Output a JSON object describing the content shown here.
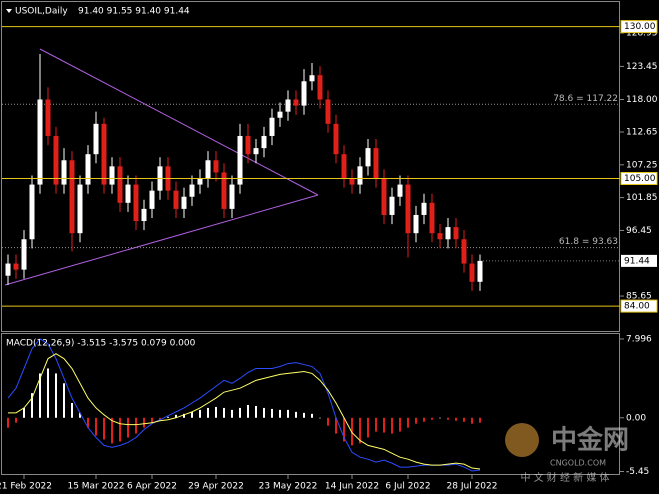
{
  "chart_data": {
    "type": "candlestick",
    "title": "USOIL,Daily",
    "ohlc_text": "91.40 91.55 91.40 91.44",
    "categories": [
      null,
      null,
      "21 Feb 2022",
      null,
      null,
      null,
      null,
      null,
      null,
      null,
      null,
      "15 Mar 2022",
      null,
      null,
      null,
      null,
      null,
      null,
      "6 Apr 2022",
      null,
      null,
      null,
      null,
      null,
      null,
      null,
      "29 Apr 2022",
      null,
      null,
      null,
      null,
      null,
      null,
      null,
      null,
      "23 May 2022",
      null,
      null,
      null,
      null,
      null,
      null,
      null,
      "14 Jun 2022",
      null,
      null,
      null,
      null,
      null,
      null,
      "6 Jul 2022",
      null,
      null,
      null,
      null,
      null,
      null,
      null,
      "28 Jul 2022",
      null
    ],
    "open": [
      89,
      91,
      90,
      95,
      104,
      118,
      112,
      104,
      108,
      96,
      104,
      109,
      114,
      104,
      107,
      101,
      104,
      98,
      100,
      103,
      107,
      103,
      100,
      102,
      104,
      105,
      108,
      106,
      100,
      104,
      112,
      109,
      110,
      112,
      115,
      116,
      118,
      117,
      121,
      122,
      118,
      114,
      109,
      105,
      104,
      107,
      110,
      105,
      99,
      102,
      104,
      96,
      99,
      101,
      96,
      95,
      97,
      95,
      91,
      88
    ],
    "high": [
      92.5,
      92.5,
      96.5,
      105.5,
      125.5,
      120,
      113.5,
      110,
      109.5,
      105.5,
      110.5,
      116,
      115,
      108.5,
      108.5,
      105.5,
      105.5,
      101.5,
      104.5,
      108.5,
      108.5,
      104.5,
      103.5,
      105.5,
      106.5,
      109.5,
      109.5,
      107.5,
      105.5,
      114,
      114,
      111.5,
      113.5,
      116.5,
      117.5,
      119.5,
      119.5,
      123,
      124,
      123.5,
      119.5,
      115.5,
      110.5,
      106.5,
      108.5,
      111.5,
      111.5,
      106.5,
      103.5,
      105.5,
      105.5,
      100.5,
      102.5,
      102.5,
      97.5,
      98.5,
      98.5,
      96.5,
      92.5,
      92.5
    ],
    "low": [
      87.5,
      88.5,
      88.5,
      93.5,
      102.5,
      110.5,
      102.5,
      102.5,
      93,
      94.5,
      102.5,
      107.5,
      102.5,
      102.5,
      99.5,
      99.5,
      96.5,
      96.5,
      98.5,
      101.5,
      101.5,
      98.5,
      98.5,
      100.5,
      102.5,
      103.5,
      104.5,
      98.5,
      98.5,
      102.5,
      107.5,
      107.5,
      108.5,
      110.5,
      113.5,
      114.5,
      115.5,
      115.5,
      119.5,
      116.5,
      112.5,
      107.5,
      103.5,
      102.5,
      102.5,
      105.5,
      103.5,
      97.5,
      97.5,
      100.5,
      92,
      94.5,
      97.5,
      94.5,
      93.5,
      93.5,
      93.5,
      89.5,
      86.5,
      86.5
    ],
    "close": [
      91,
      90,
      95,
      104,
      118,
      112,
      104,
      108,
      96,
      104,
      109,
      114,
      104,
      107,
      101,
      104,
      98,
      100,
      103,
      107,
      103,
      100,
      102,
      104,
      105,
      108,
      106,
      100,
      104,
      112,
      109,
      110,
      112,
      115,
      116,
      118,
      117,
      121,
      122,
      118,
      114,
      109,
      105,
      104,
      107,
      110,
      105,
      99,
      102,
      104,
      96,
      99,
      101,
      96,
      95,
      97,
      95,
      91,
      88,
      91.44
    ],
    "up_color": "#ffffff",
    "down_color": "#e0201b",
    "ylim": [
      79.9,
      134.05
    ],
    "yticks": [
      128.95,
      123.45,
      {
        "value": 118,
        "label": "118.00"
      },
      112.65,
      107.25,
      101.85,
      96.45,
      85.65
    ],
    "levels": [
      {
        "value": 130,
        "label": "130.00"
      },
      {
        "value": 105,
        "label": "105.00"
      },
      {
        "value": 84,
        "label": "84.00"
      }
    ],
    "level_color": "#e6c619",
    "fib_levels": [
      {
        "value": 117.22,
        "label": "78.6 = 117.22"
      },
      {
        "value": 93.63,
        "label": "61.8 = 93.63"
      }
    ],
    "last_price": 91.44,
    "macd": {
      "title": "MACD(12,26,9) -3.515 -3.575 0.079 0.000",
      "ylim": [
        -5.5,
        8.5
      ],
      "yticks": [
        7.996,
        {
          "value": 0,
          "label": "0.00"
        },
        -5.45
      ],
      "pos_color": "#ffffff",
      "neg_color": "#e0201b",
      "histogram": [
        -1,
        -0.5,
        1,
        2.5,
        4.5,
        5,
        4.5,
        3.5,
        1.5,
        0.5,
        -1,
        -1.8,
        -2.2,
        -2.6,
        -2.4,
        -2.0,
        -1.6,
        -1.0,
        -0.5,
        -0.2,
        0.1,
        0.3,
        0.4,
        0.6,
        0.8,
        1.0,
        1.1,
        1.0,
        0.8,
        1.0,
        1.3,
        1.2,
        1.0,
        0.9,
        0.8,
        0.8,
        0.6,
        0.5,
        0.4,
        0.0,
        -0.8,
        -1.6,
        -2.4,
        -2.8,
        -2.6,
        -2.0,
        -1.4,
        -1.5,
        -1.6,
        -1.4,
        -1.0,
        -0.6,
        -0.4,
        -0.2,
        0,
        -0.2,
        -0.3,
        -0.4,
        -0.6,
        -0.5
      ],
      "lines": [
        {
          "color": "#2b4cff",
          "values": [
            2,
            3,
            5,
            7,
            8,
            7.5,
            6,
            4,
            2,
            0.5,
            -1,
            -2,
            -2.8,
            -3,
            -2.8,
            -2.5,
            -2,
            -1.2,
            -0.6,
            -0.2,
            0.2,
            0.6,
            1,
            1.5,
            2,
            2.6,
            3.2,
            3.8,
            3.5,
            4,
            4.6,
            5,
            5,
            5,
            5.2,
            5.5,
            5.6,
            5.4,
            5.2,
            4.5,
            2.5,
            0,
            -2,
            -3.5,
            -4,
            -4.2,
            -4.5,
            -4.3,
            -4.6,
            -5,
            -5,
            -4.9,
            -4.8,
            -4.8,
            -4.8,
            -4.8,
            -4.7,
            -5,
            -5.4,
            -5.3
          ]
        },
        {
          "color": "#ffff66",
          "values": [
            0.5,
            0.5,
            1,
            2,
            4,
            6,
            6.5,
            6,
            5,
            3.5,
            2,
            1,
            0.3,
            -0.3,
            -0.6,
            -0.7,
            -0.7,
            -0.6,
            -0.5,
            -0.3,
            -0.2,
            0,
            0.3,
            0.6,
            1,
            1.5,
            2,
            2.6,
            2.8,
            3.0,
            3.4,
            3.8,
            4.0,
            4.2,
            4.4,
            4.5,
            4.6,
            4.7,
            4.5,
            3.8,
            2.8,
            1.5,
            0,
            -1.5,
            -2.3,
            -2.8,
            -3,
            -3.2,
            -3.6,
            -4,
            -4.2,
            -4.5,
            -4.7,
            -4.8,
            -4.8,
            -4.7,
            -4.6,
            -4.7,
            -5.1,
            -5.2
          ]
        }
      ]
    }
  },
  "watermark": {
    "brand": "中金网",
    "site": "CNGOLD.COM",
    "slogan": "中 文 财 经 新 媒 体"
  }
}
